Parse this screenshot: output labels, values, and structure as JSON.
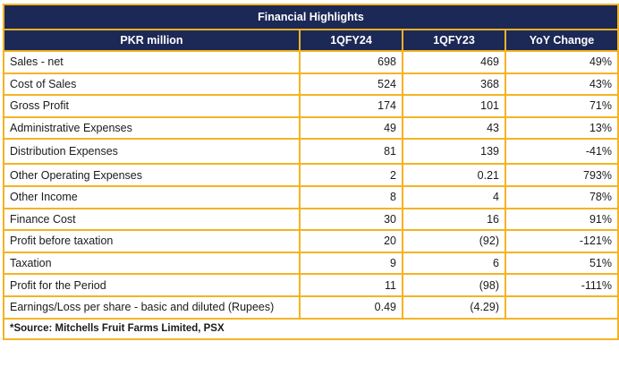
{
  "title": "Financial Highlights",
  "columns": [
    "PKR million",
    "1QFY24",
    "1QFY23",
    "YoY Change"
  ],
  "rows": [
    {
      "label": "Sales - net",
      "fy24": "698",
      "fy23": "469",
      "yoy": "49%"
    },
    {
      "label": "Cost of Sales",
      "fy24": "524",
      "fy23": "368",
      "yoy": "43%"
    },
    {
      "label": "Gross Profit",
      "fy24": "174",
      "fy23": "101",
      "yoy": "71%"
    },
    {
      "label": "Administrative Expenses",
      "fy24": "49",
      "fy23": "43",
      "yoy": "13%"
    },
    {
      "label": "Distribution Expenses",
      "fy24": "81",
      "fy23": "139",
      "yoy": "-41%"
    },
    {
      "label": "Other Operating Expenses",
      "fy24": "2",
      "fy23": "0.21",
      "yoy": "793%"
    },
    {
      "label": "Other Income",
      "fy24": "8",
      "fy23": "4",
      "yoy": "78%"
    },
    {
      "label": "Finance Cost",
      "fy24": "30",
      "fy23": "16",
      "yoy": "91%"
    },
    {
      "label": "Profit before taxation",
      "fy24": "20",
      "fy23": "(92)",
      "yoy": "-121%"
    },
    {
      "label": "Taxation",
      "fy24": "9",
      "fy23": "6",
      "yoy": "51%"
    },
    {
      "label": "Profit for the Period",
      "fy24": "11",
      "fy23": "(98)",
      "yoy": "-111%"
    },
    {
      "label": "Earnings/Loss per share - basic and diluted (Rupees)",
      "fy24": "0.49",
      "fy23": "(4.29)",
      "yoy": ""
    }
  ],
  "source": "*Source: Mitchells Fruit Farms Limited, PSX",
  "colors": {
    "header_bg": "#1c2957",
    "border": "#f5b324"
  }
}
